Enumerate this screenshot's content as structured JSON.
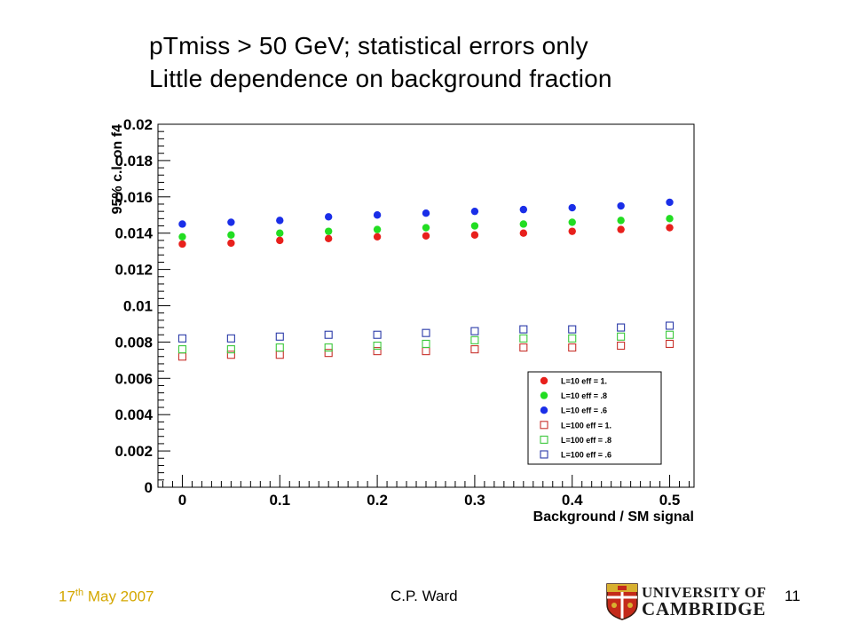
{
  "slide": {
    "title_line1": "pTmiss > 50 GeV; statistical errors only",
    "title_line2": "Little dependence on background fraction",
    "footer_date_prefix": "17",
    "footer_date_sup": "th",
    "footer_date_suffix": " May 2007",
    "footer_author": "C.P. Ward",
    "footer_page": "11",
    "logo_line1": "UNIVERSITY OF",
    "logo_line2": "CAMBRIDGE"
  },
  "chart_data": {
    "type": "scatter",
    "title": "",
    "xlabel": "Background / SM signal",
    "ylabel": "95% c.l. on f4",
    "xlim": [
      -0.025,
      0.525
    ],
    "ylim": [
      0,
      0.02
    ],
    "x_ticks": [
      0,
      0.1,
      0.2,
      0.3,
      0.4,
      0.5
    ],
    "x_tick_labels": [
      "0",
      "0.1",
      "0.2",
      "0.3",
      "0.4",
      "0.5"
    ],
    "y_ticks": [
      0,
      0.002,
      0.004,
      0.006,
      0.008,
      0.01,
      0.012,
      0.014,
      0.016,
      0.018,
      0.02
    ],
    "y_tick_labels": [
      "0",
      "0.002",
      "0.004",
      "0.006",
      "0.008",
      "0.01",
      "0.012",
      "0.014",
      "0.016",
      "0.018",
      "0.02"
    ],
    "grid": false,
    "legend_position": "bottom-right",
    "x": [
      0,
      0.05,
      0.1,
      0.15,
      0.2,
      0.25,
      0.3,
      0.35,
      0.4,
      0.45,
      0.5
    ],
    "series": [
      {
        "name": "L=10 eff = 1.",
        "marker": "filled-circle",
        "color": "#e8201c",
        "values": [
          0.0134,
          0.01345,
          0.0136,
          0.0137,
          0.0138,
          0.01385,
          0.0139,
          0.014,
          0.0141,
          0.0142,
          0.0143
        ]
      },
      {
        "name": "L=10 eff = .8",
        "marker": "filled-circle",
        "color": "#22dd22",
        "values": [
          0.0138,
          0.0139,
          0.014,
          0.0141,
          0.0142,
          0.0143,
          0.0144,
          0.0145,
          0.0146,
          0.0147,
          0.0148
        ]
      },
      {
        "name": "L=10 eff = .6",
        "marker": "filled-circle",
        "color": "#1a2ee8",
        "values": [
          0.0145,
          0.0146,
          0.0147,
          0.0149,
          0.015,
          0.0151,
          0.0152,
          0.0153,
          0.0154,
          0.0155,
          0.0157
        ]
      },
      {
        "name": "L=100 eff = 1.",
        "marker": "open-square",
        "color": "#c8322c",
        "values": [
          0.0072,
          0.0073,
          0.0073,
          0.0074,
          0.0075,
          0.0075,
          0.0076,
          0.0077,
          0.0077,
          0.0078,
          0.0079
        ]
      },
      {
        "name": "L=100 eff = .8",
        "marker": "open-square",
        "color": "#3cc83c",
        "values": [
          0.0076,
          0.0076,
          0.0077,
          0.0077,
          0.0078,
          0.0079,
          0.0081,
          0.0082,
          0.0082,
          0.0083,
          0.0084
        ]
      },
      {
        "name": "L=100 eff = .6",
        "marker": "open-square",
        "color": "#2a3aa8",
        "values": [
          0.0082,
          0.0082,
          0.0083,
          0.0084,
          0.0084,
          0.0085,
          0.0086,
          0.0087,
          0.0087,
          0.0088,
          0.0089
        ]
      }
    ]
  }
}
